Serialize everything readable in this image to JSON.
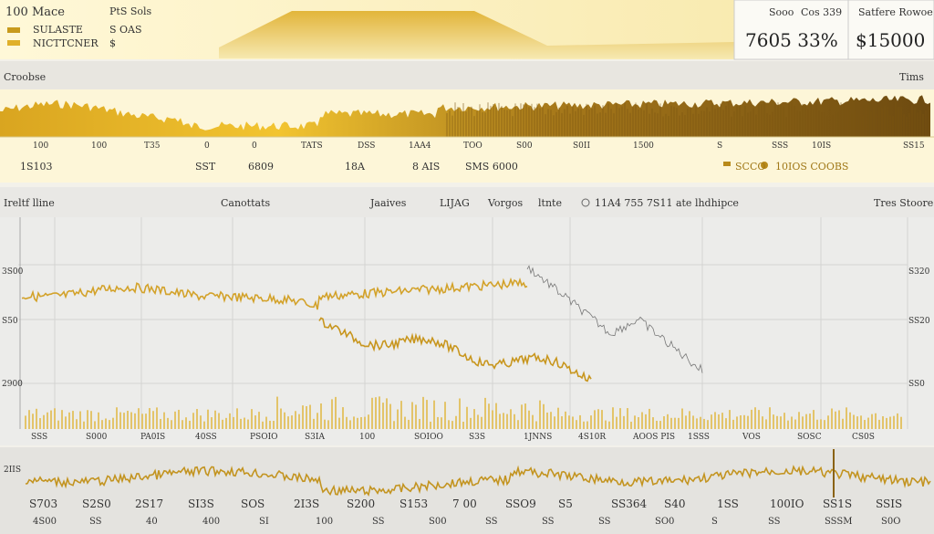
{
  "header": {
    "title": "100 Mace",
    "pair": "PtS Sols",
    "legend": [
      "SULASTE",
      "NICTTCNER"
    ],
    "legend_value": "$",
    "sub": "S OAS",
    "stat_labels": [
      "Sooo",
      "Cos 339"
    ],
    "stat_value": "7605 33%",
    "side_label": "Satfere Rowoe",
    "side_value": "$15000"
  },
  "overview": {
    "title": "Croobse",
    "right": "Tims",
    "ticks": [
      "100",
      "100",
      "T35",
      "0",
      "0",
      "TATS",
      "DSS",
      "1AA4",
      "TOO",
      "S00",
      "S0II",
      "1500",
      "S",
      "SSS",
      "10IS",
      "SS15"
    ],
    "values": [
      "1S103",
      "SST",
      "6809",
      "18A",
      "8 AIS",
      "SMS 6000"
    ],
    "legend": [
      "SCCO",
      "10IOS COOBS"
    ]
  },
  "main": {
    "title": "Ireltf lline",
    "tabs": [
      "Canottats",
      "Jaaives",
      "LIJAG",
      "Vorgos",
      "ltnte"
    ],
    "info": "11A4 755 7S11 ate lhdhipce",
    "right": "Tres Stoore",
    "y_left": [
      "3S00",
      "S50",
      "2900"
    ],
    "y_right": [
      "S320",
      "SS20",
      "SS0"
    ],
    "x_labels": [
      "SSS",
      "S000",
      "PA0IS",
      "40SS",
      "PSOIO",
      "S3IA",
      "100",
      "SOIOO",
      "S3S",
      "1JNNS",
      "4S10R",
      "AOOS PIS",
      "1SSS",
      "VOS",
      "SOSC",
      "CS0S"
    ]
  },
  "footer": {
    "label": "2IIS",
    "row1": [
      "S703",
      "S2S0",
      "2S17",
      "SI3S",
      "SOS",
      "2I3S",
      "S200",
      "S153",
      "7 00",
      "SSO9",
      "S5",
      "SS364",
      "S40",
      "1SS",
      "100IO",
      "SS1S",
      "SSIS"
    ],
    "row2": [
      "4S00",
      "SS",
      "40",
      "400",
      "SI",
      "100",
      "SS",
      "S00",
      "SS",
      "SS",
      "SS",
      "SO0",
      "S",
      "SS",
      "SSSM",
      "S0O"
    ]
  }
}
